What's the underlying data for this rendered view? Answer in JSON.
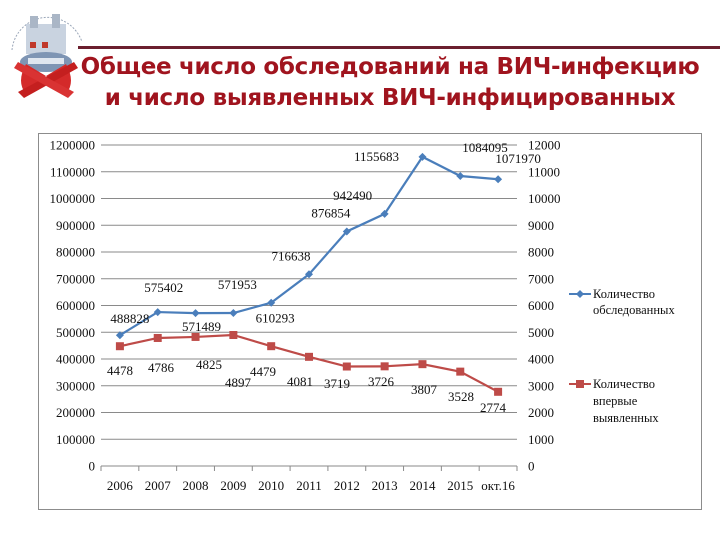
{
  "slide": {
    "title_line1": "Общее число обследований на ВИЧ-инфекцию",
    "title_line2": "и число выявленных ВИЧ-инфицированных",
    "accent_color": "#a0141e",
    "rule_color": "#6b1f2e"
  },
  "logo": {
    "icon": "ribbon-ship-emblem-icon"
  },
  "chart_data": {
    "type": "line",
    "title": "Общее число обследований на ВИЧ-инфекцию и число выявленных ВИЧ-инфицированных",
    "categories": [
      "2006",
      "2007",
      "2008",
      "2009",
      "2010",
      "2011",
      "2012",
      "2013",
      "2014",
      "2015",
      "окт.16"
    ],
    "series": [
      {
        "name": "Количество обследованных",
        "axis": "left",
        "color": "#4a7ebb",
        "marker": "diamond",
        "values": [
          488828,
          575402,
          571489,
          571953,
          610293,
          716638,
          876854,
          942490,
          1155683,
          1084095,
          1071970
        ]
      },
      {
        "name": "Количество впервые выявленных",
        "axis": "right",
        "color": "#be4b48",
        "marker": "square",
        "values": [
          4478,
          4786,
          4825,
          4897,
          4479,
          4081,
          3719,
          3726,
          3807,
          3528,
          2774
        ]
      }
    ],
    "left_axis": {
      "min": 0,
      "max": 1200000,
      "step": 100000,
      "ticks": [
        "0",
        "100000",
        "200000",
        "300000",
        "400000",
        "500000",
        "600000",
        "700000",
        "800000",
        "900000",
        "1000000",
        "1100000",
        "1200000"
      ]
    },
    "right_axis": {
      "min": 0,
      "max": 12000,
      "step": 1000,
      "ticks": [
        "0",
        "1000",
        "2000",
        "3000",
        "4000",
        "5000",
        "6000",
        "7000",
        "8000",
        "9000",
        "10000",
        "11000",
        "12000"
      ]
    },
    "grid": true,
    "legend_position": "right",
    "legend": [
      "Количество обследованных",
      "Количество впервые выявлених"
    ],
    "xlabel": "",
    "ylabel": ""
  },
  "labels": {
    "blue": [
      "488828",
      "575402",
      "571489",
      "571953",
      "610293",
      "716638",
      "876854",
      "942490",
      "1155683",
      "1084095",
      "1071970"
    ],
    "red": [
      "4478",
      "4786",
      "4825",
      "4897",
      "4479",
      "4081",
      "3719",
      "3726",
      "3807",
      "3528",
      "2774"
    ]
  },
  "legend": {
    "item1_line1": "Количество",
    "item1_line2": "обследованных",
    "item2_line1": "Количество",
    "item2_line2": "впервые",
    "item2_line3": "выявленных"
  }
}
